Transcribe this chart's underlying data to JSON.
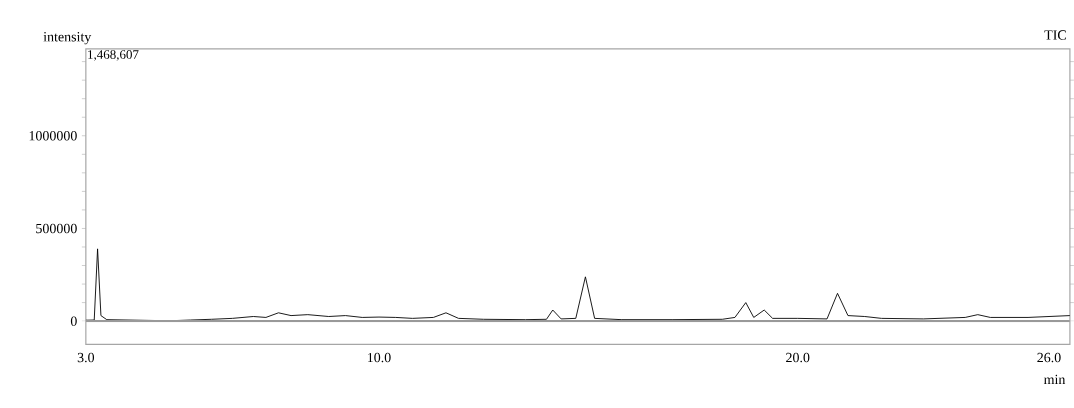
{
  "chart_data": {
    "type": "line",
    "title": "TIC",
    "xlabel": "min",
    "ylabel": "intensity",
    "annotations": [
      "1,468,607"
    ],
    "xlim": [
      3.0,
      26.5
    ],
    "ylim": [
      -125000,
      1468607
    ],
    "xticks": [
      {
        "value": 3,
        "label": "3.0"
      },
      {
        "value": 10,
        "label": "10.0"
      },
      {
        "value": 20,
        "label": "20.0"
      },
      {
        "value": 26,
        "label": "26.0"
      }
    ],
    "yticks": [
      0,
      {
        "value": 100000,
        "label": null
      },
      {
        "value": 200000,
        "label": null
      },
      {
        "value": 300000,
        "label": null
      },
      {
        "value": 400000,
        "label": null
      },
      500000,
      {
        "value": 600000,
        "label": null
      },
      {
        "value": 700000,
        "label": null
      },
      {
        "value": 800000,
        "label": null
      },
      {
        "value": 900000,
        "label": null
      },
      1000000,
      {
        "value": 1100000,
        "label": null
      },
      {
        "value": 1200000,
        "label": null
      },
      {
        "value": 1300000,
        "label": null
      },
      {
        "value": 1400000,
        "label": null
      }
    ],
    "grid": false,
    "marker": "none",
    "line_style": "solid",
    "series": [
      {
        "color": "#000000",
        "x": [
          3.0,
          3.2,
          3.28,
          3.36,
          3.5,
          4.5,
          5.0,
          5.5,
          6.0,
          6.5,
          7.0,
          7.3,
          7.6,
          7.9,
          8.3,
          8.8,
          9.2,
          9.6,
          10.0,
          10.4,
          10.8,
          11.3,
          11.6,
          11.9,
          12.5,
          13.5,
          14.0,
          14.15,
          14.35,
          14.7,
          14.93,
          15.15,
          15.8,
          17.0,
          18.2,
          18.5,
          18.76,
          18.95,
          19.2,
          19.4,
          20.0,
          20.7,
          20.95,
          21.2,
          21.6,
          22.0,
          23.0,
          24.0,
          24.3,
          24.6,
          25.5,
          26.5
        ],
        "values": [
          5000,
          6000,
          390000,
          30000,
          8000,
          4000,
          2000,
          6000,
          10000,
          15000,
          25000,
          20000,
          45000,
          30000,
          35000,
          25000,
          30000,
          20000,
          22000,
          20000,
          15000,
          20000,
          45000,
          15000,
          10000,
          8000,
          10000,
          60000,
          12000,
          15000,
          239000,
          15000,
          8000,
          8000,
          10000,
          20000,
          100000,
          20000,
          60000,
          15000,
          15000,
          12000,
          150000,
          30000,
          25000,
          15000,
          12000,
          20000,
          35000,
          20000,
          20000,
          30000
        ]
      },
      {
        "color": "#999999",
        "x": [
          3.0,
          26.5
        ],
        "values": [
          0,
          0
        ]
      }
    ]
  }
}
